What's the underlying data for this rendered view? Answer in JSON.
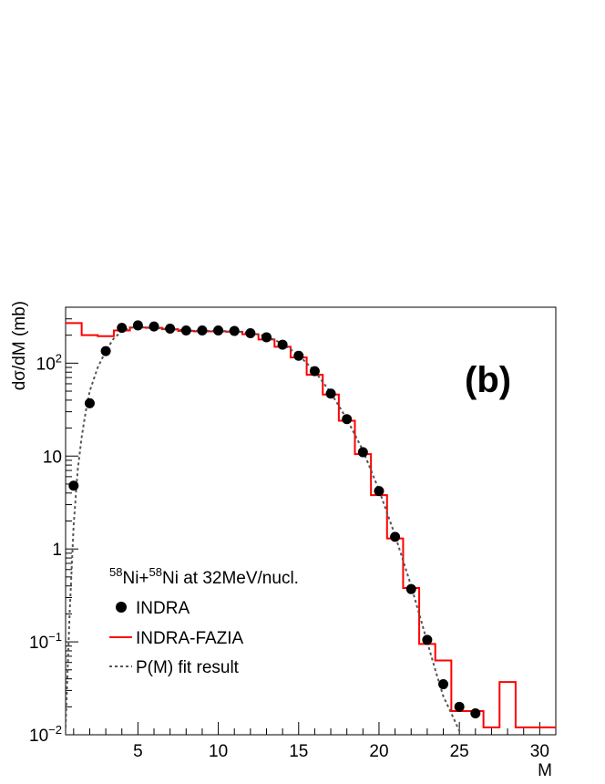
{
  "chart_data": {
    "type": "scatter",
    "xlabel": "M",
    "ylabel": "dσ/dM (mb)",
    "xlim": [
      0.5,
      31
    ],
    "ylim": [
      0.01,
      400
    ],
    "yscale": "log",
    "xticks": [
      5,
      10,
      15,
      20,
      25,
      30
    ],
    "yticks": [
      {
        "value": 0.01,
        "mantissa": "10",
        "exp": "−2"
      },
      {
        "value": 0.1,
        "mantissa": "10",
        "exp": "−1"
      },
      {
        "value": 1,
        "mantissa": "1",
        "exp": ""
      },
      {
        "value": 10,
        "mantissa": "10",
        "exp": ""
      },
      {
        "value": 100,
        "mantissa": "10",
        "exp": "2"
      }
    ],
    "panel_label": "(b)",
    "legend": {
      "title": {
        "sup1": "58",
        "mid": "Ni+",
        "sup2": "58",
        "rest": "Ni at 32MeV/nucl."
      },
      "entries": [
        "INDRA",
        "INDRA-FAZIA",
        "P(M) fit result"
      ]
    },
    "series": [
      {
        "name": "INDRA",
        "style": "markers",
        "color": "#000000",
        "x": [
          1,
          2,
          3,
          4,
          5,
          6,
          7,
          8,
          9,
          10,
          11,
          12,
          13,
          14,
          15,
          16,
          17,
          18,
          19,
          20,
          21,
          22,
          23,
          24,
          25,
          26
        ],
        "y": [
          4.8,
          37,
          135,
          240,
          255,
          248,
          235,
          225,
          225,
          225,
          222,
          210,
          190,
          158,
          120,
          82,
          47,
          25,
          11,
          4.2,
          1.35,
          0.37,
          0.105,
          0.035,
          0.02,
          0.017
        ]
      },
      {
        "name": "INDRA-FAZIA",
        "style": "step",
        "color": "#ff0000",
        "edges": [
          0.5,
          1.5,
          2.5,
          3.5,
          4.5,
          5.5,
          6.5,
          7.5,
          8.5,
          9.5,
          10.5,
          11.5,
          12.5,
          13.5,
          14.5,
          15.5,
          16.5,
          17.5,
          18.5,
          19.5,
          20.5,
          21.5,
          22.5,
          23.5,
          24.5,
          25.5,
          26.5,
          27.5,
          28.5,
          29.5,
          30.5,
          31
        ],
        "values": [
          270,
          200,
          195,
          225,
          242,
          240,
          232,
          222,
          220,
          220,
          218,
          205,
          180,
          150,
          115,
          75,
          46,
          24,
          10.5,
          3.8,
          1.3,
          0.38,
          0.095,
          0.063,
          0.018,
          0.018,
          0.012,
          0.037,
          0.012,
          0.012,
          0.012
        ]
      },
      {
        "name": "P(M) fit result",
        "style": "dashed",
        "color": "#555555",
        "x": [
          0.5,
          0.75,
          1.0,
          1.25,
          1.5,
          1.75,
          2.0,
          2.5,
          3.0,
          3.5,
          4.0,
          4.5,
          5.0,
          6,
          7,
          8,
          9,
          10,
          11,
          12,
          13,
          14,
          15,
          16,
          17,
          18,
          19,
          20,
          21,
          22,
          23,
          23.5,
          24,
          24.5,
          25,
          25.3
        ],
        "y": [
          0.012,
          0.2,
          1.8,
          7,
          16,
          30,
          50,
          90,
          135,
          185,
          220,
          240,
          245,
          240,
          232,
          225,
          222,
          222,
          220,
          212,
          195,
          162,
          122,
          82,
          48,
          25,
          11.5,
          4.3,
          1.4,
          0.4,
          0.1,
          0.05,
          0.026,
          0.017,
          0.011,
          0.009
        ]
      }
    ]
  }
}
